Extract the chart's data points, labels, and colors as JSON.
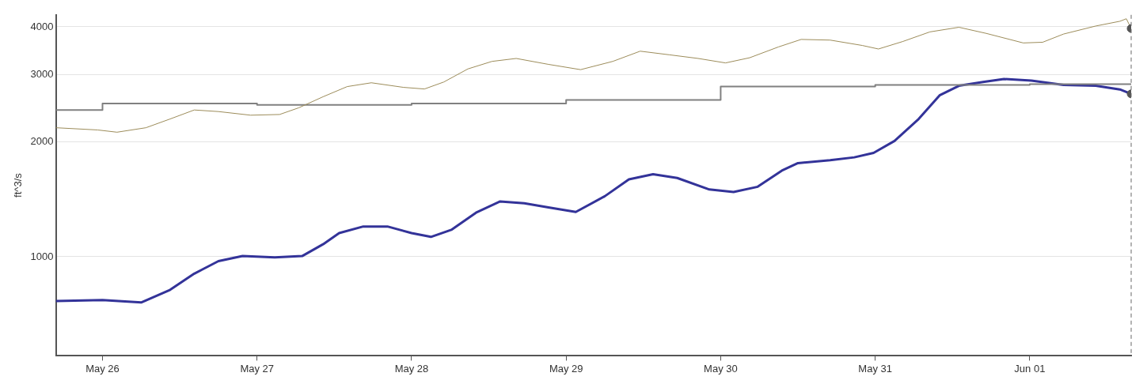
{
  "chart_data": {
    "type": "line",
    "ylabel": "ft^3/s",
    "log": "y",
    "grid": "y",
    "legend": false,
    "xlim": [
      "--05-25T16:45",
      "--06-01T15:45"
    ],
    "xticks": [
      {
        "value": "--05-26",
        "label": "May 26"
      },
      {
        "value": "--05-27",
        "label": "May 27"
      },
      {
        "value": "--05-28",
        "label": "May 28"
      },
      {
        "value": "--05-29",
        "label": "May 29"
      },
      {
        "value": "--05-30",
        "label": "May 30"
      },
      {
        "value": "--05-31",
        "label": "May 31"
      },
      {
        "value": "--06-01",
        "label": "Jun 01"
      }
    ],
    "ylim": [
      550,
      4300
    ],
    "yticks": [
      1000,
      2000,
      3000,
      4000
    ],
    "ref_lines": [
      {
        "axis": "x",
        "value": "--06-01T15:45",
        "color": "#666666",
        "line_style": "dashed"
      }
    ],
    "series": [
      {
        "type": "line",
        "color": "#9c8c5a",
        "marker": "none",
        "line_style": "solid",
        "x": [
          "--05-25T16:45",
          "--05-25T23:15",
          "--05-26T02:15",
          "--05-26T06:45",
          "--05-26T10:30",
          "--05-26T14:15",
          "--05-26T18:00",
          "--05-26T23:00",
          "--05-27T03:30",
          "--05-27T06:30",
          "--05-27T10:15",
          "--05-27T14:00",
          "--05-27T17:45",
          "--05-27T22:45",
          "--05-28T02:00",
          "--05-28T05:00",
          "--05-28T08:45",
          "--05-28T12:30",
          "--05-28T16:15",
          "--05-28T21:15",
          "--05-29T02:15",
          "--05-29T07:15",
          "--05-29T11:30",
          "--05-29T16:00",
          "--05-29T20:30",
          "--05-30T00:45",
          "--05-30T04:30",
          "--05-30T09:00",
          "--05-30T12:30",
          "--05-30T17:00",
          "--05-30T22:00",
          "--05-31T00:30",
          "--05-31T04:15",
          "--05-31T08:30",
          "--05-31T13:00",
          "--05-31T17:15",
          "--05-31T23:00",
          "--06-01T02:00",
          "--06-01T05:15",
          "--06-01T10:15",
          "--06-01T14:00",
          "--06-01T15:00",
          "--06-01T15:45"
        ],
        "values": [
          2177,
          2148,
          2119,
          2177,
          2295,
          2423,
          2400,
          2348,
          2358,
          2456,
          2624,
          2790,
          2855,
          2777,
          2750,
          2868,
          3104,
          3248,
          3306,
          3190,
          3090,
          3248,
          3454,
          3380,
          3306,
          3218,
          3320,
          3545,
          3708,
          3693,
          3575,
          3500,
          3660,
          3880,
          3990,
          3845,
          3630,
          3645,
          3830,
          4020,
          4137,
          4200,
          3960
        ]
      },
      {
        "type": "step",
        "color": "#808080",
        "marker": "none",
        "line_style": "solid",
        "x": [
          "--05-25T16:45",
          "--05-26",
          "--05-27",
          "--05-28",
          "--05-29",
          "--05-30",
          "--05-31",
          "--06-01",
          "--06-01T15:45"
        ],
        "values": [
          2423,
          2520,
          2498,
          2520,
          2575,
          2790,
          2818,
          2830,
          2830
        ]
      },
      {
        "type": "line",
        "color": "#333399",
        "marker": "none",
        "line_style": "solid",
        "x": [
          "--05-25T16:45",
          "--05-26T00:00",
          "--05-26T06:00",
          "--05-26T10:30",
          "--05-26T14:15",
          "--05-26T18:00",
          "--05-26T21:45",
          "--05-27T02:45",
          "--05-27T07:00",
          "--05-27T10:15",
          "--05-27T12:45",
          "--05-27T16:30",
          "--05-27T20:15",
          "--05-28T00:00",
          "--05-28T03:00",
          "--05-28T06:15",
          "--05-28T10:00",
          "--05-28T13:45",
          "--05-28T17:30",
          "--05-28T21:15",
          "--05-29T01:30",
          "--05-29T06:00",
          "--05-29T09:45",
          "--05-29T13:30",
          "--05-29T17:15",
          "--05-29T22:15",
          "--05-30T02:00",
          "--05-30T05:45",
          "--05-30T09:30",
          "--05-30T12:00",
          "--05-30T17:00",
          "--05-30T20:45",
          "--05-30T23:45",
          "--05-31T03:00",
          "--05-31T06:45",
          "--05-31T10:00",
          "--05-31T13:00",
          "--05-31T16:45",
          "--05-31T20:00",
          "--06-01T00:15",
          "--06-01T05:15",
          "--06-01T10:15",
          "--06-01T14:00",
          "--06-01T15:45"
        ],
        "values": [
          766,
          770,
          759,
          819,
          903,
          974,
          1004,
          996,
          1004,
          1078,
          1153,
          1200,
          1200,
          1153,
          1127,
          1178,
          1304,
          1396,
          1380,
          1347,
          1310,
          1440,
          1595,
          1645,
          1608,
          1500,
          1478,
          1525,
          1681,
          1759,
          1790,
          1821,
          1871,
          2010,
          2295,
          2646,
          2804,
          2868,
          2920,
          2893,
          2817,
          2804,
          2743,
          2670
        ]
      },
      {
        "type": "scatter",
        "color": "#555555",
        "marker": "circle",
        "x": [
          "--06-01T15:45",
          "--06-01T15:45"
        ],
        "values": [
          3960,
          2670
        ]
      }
    ]
  }
}
